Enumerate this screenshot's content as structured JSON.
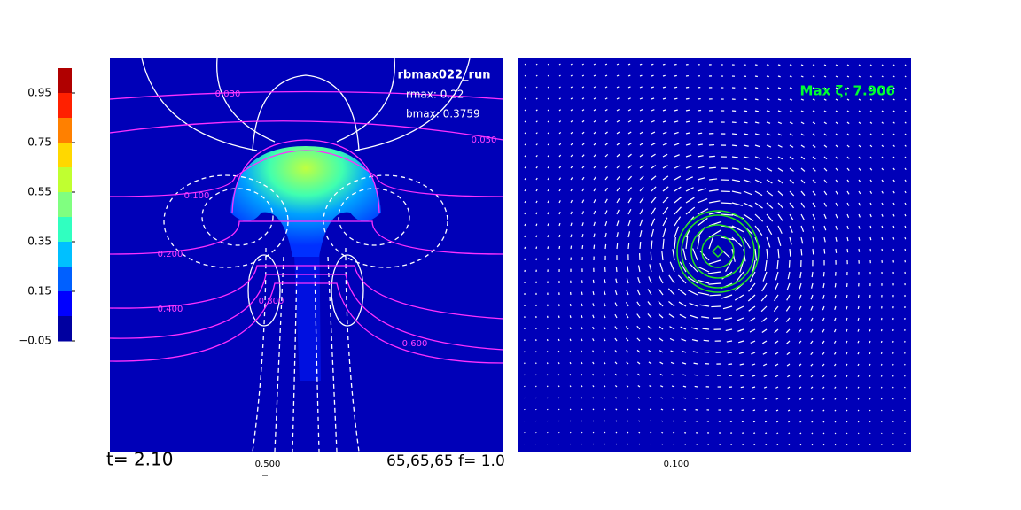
{
  "colorbar": {
    "ticks": [
      "0.95",
      "0.75",
      "0.55",
      "0.35",
      "0.15",
      "−0.05"
    ],
    "colors": [
      "#b00000",
      "#ff2000",
      "#ff8000",
      "#ffd800",
      "#c0ff30",
      "#80ff80",
      "#30ffc0",
      "#00c0ff",
      "#0060ff",
      "#0000ff",
      "#0000a0"
    ]
  },
  "left_panel": {
    "title": "rbmax022_run",
    "rmax": "rmax: 0.22",
    "bmax": "bmax: 0.3759",
    "contour_labels": [
      "0.030",
      "0.050",
      "0.100",
      "0.200",
      "0.400",
      "0.600",
      "0.800"
    ]
  },
  "right_panel": {
    "max_label": "Max ζ: 7.906"
  },
  "footer": {
    "time": "t= 2.10",
    "scale_left": "0.500",
    "grid": "65,65,65   f= 1.0",
    "scale_right": "0.100"
  }
}
